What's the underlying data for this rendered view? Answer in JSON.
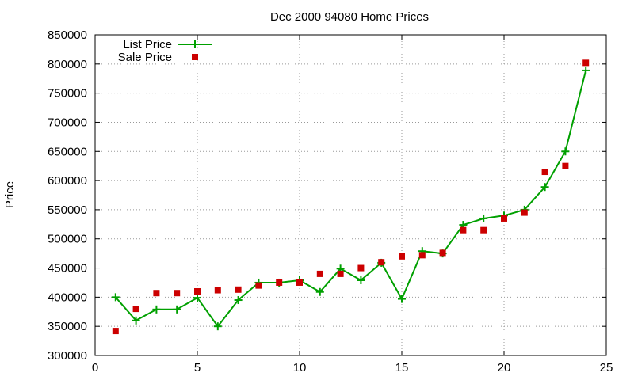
{
  "chart_data": {
    "type": "line",
    "title": "Dec 2000 94080 Home Prices",
    "xlabel": "",
    "ylabel": "Price",
    "xlim": [
      0,
      25
    ],
    "ylim": [
      300000,
      850000
    ],
    "x_ticks": [
      0,
      5,
      10,
      15,
      20,
      25
    ],
    "y_ticks": [
      300000,
      350000,
      400000,
      450000,
      500000,
      550000,
      600000,
      650000,
      700000,
      750000,
      800000,
      850000
    ],
    "grid": true,
    "legend_position": "top-left",
    "x": [
      1,
      2,
      3,
      4,
      5,
      6,
      7,
      8,
      9,
      10,
      11,
      12,
      13,
      14,
      15,
      16,
      17,
      18,
      19,
      20,
      21,
      22,
      23,
      24
    ],
    "series": [
      {
        "name": "List Price",
        "style": "linespoints",
        "marker": "plus",
        "color": "#00a000",
        "values": [
          400000,
          360000,
          379000,
          379000,
          399000,
          350000,
          395000,
          425000,
          425000,
          429000,
          409000,
          449000,
          429000,
          459000,
          397000,
          479000,
          475000,
          524000,
          535000,
          540000,
          550000,
          589000,
          650000,
          789000
        ]
      },
      {
        "name": "Sale Price",
        "style": "points",
        "marker": "square",
        "color": "#cc0000",
        "values": [
          342000,
          380000,
          407000,
          407000,
          410000,
          412000,
          413000,
          420000,
          425000,
          425000,
          440000,
          440000,
          450000,
          460000,
          470000,
          472000,
          476000,
          515000,
          515000,
          535000,
          545000,
          615000,
          625000,
          802000
        ]
      }
    ]
  }
}
